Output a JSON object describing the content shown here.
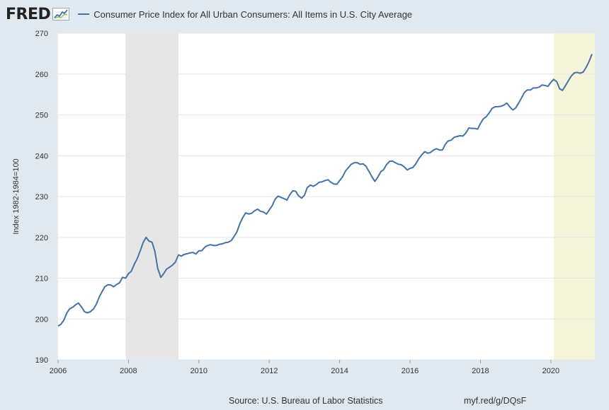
{
  "header": {
    "logo": "FRED",
    "logo_icon": "chart-graph-icon"
  },
  "chart_data": {
    "type": "line",
    "title": "Consumer Price Index for All Urban Consumers: All Items in U.S. City Average",
    "xlabel": "",
    "ylabel": "Index 1982-1984=100",
    "xlim": [
      2006,
      2021.25
    ],
    "ylim": [
      190,
      270
    ],
    "yticks": [
      190,
      200,
      210,
      220,
      230,
      240,
      250,
      260,
      270
    ],
    "xticks": [
      2006,
      2008,
      2010,
      2012,
      2014,
      2016,
      2018,
      2020
    ],
    "xtick_labels": [
      "2006",
      "2008",
      "2010",
      "2012",
      "2014",
      "2016",
      "2018",
      "2020"
    ],
    "grid": true,
    "series_color": "#4572a7",
    "recession_color": "#e6e6e6",
    "covid_shade_color": "#f5f5dc",
    "shaded_ranges": [
      {
        "start": 2007.92,
        "end": 2009.42,
        "color_key": "recession_color"
      },
      {
        "start": 2020.08,
        "end": 2021.25,
        "color_key": "covid_shade_color"
      }
    ],
    "series": [
      {
        "name": "Consumer Price Index for All Urban Consumers: All Items in U.S. City Average",
        "points": [
          [
            2006.0,
            198.3
          ],
          [
            2006.08,
            198.7
          ],
          [
            2006.17,
            199.8
          ],
          [
            2006.25,
            201.5
          ],
          [
            2006.33,
            202.5
          ],
          [
            2006.42,
            202.9
          ],
          [
            2006.5,
            203.5
          ],
          [
            2006.58,
            203.9
          ],
          [
            2006.67,
            202.9
          ],
          [
            2006.75,
            201.8
          ],
          [
            2006.83,
            201.5
          ],
          [
            2006.92,
            201.8
          ],
          [
            2007.0,
            202.4
          ],
          [
            2007.08,
            203.5
          ],
          [
            2007.17,
            205.4
          ],
          [
            2007.25,
            206.7
          ],
          [
            2007.33,
            207.9
          ],
          [
            2007.42,
            208.4
          ],
          [
            2007.5,
            208.3
          ],
          [
            2007.58,
            207.9
          ],
          [
            2007.67,
            208.5
          ],
          [
            2007.75,
            208.9
          ],
          [
            2007.83,
            210.2
          ],
          [
            2007.92,
            210.0
          ],
          [
            2008.0,
            211.1
          ],
          [
            2008.08,
            211.7
          ],
          [
            2008.17,
            213.5
          ],
          [
            2008.25,
            214.8
          ],
          [
            2008.33,
            216.6
          ],
          [
            2008.42,
            218.8
          ],
          [
            2008.5,
            220.0
          ],
          [
            2008.58,
            219.1
          ],
          [
            2008.67,
            218.8
          ],
          [
            2008.75,
            216.6
          ],
          [
            2008.83,
            212.4
          ],
          [
            2008.92,
            210.2
          ],
          [
            2009.0,
            211.1
          ],
          [
            2009.08,
            212.2
          ],
          [
            2009.17,
            212.7
          ],
          [
            2009.25,
            213.2
          ],
          [
            2009.33,
            213.9
          ],
          [
            2009.42,
            215.7
          ],
          [
            2009.5,
            215.4
          ],
          [
            2009.58,
            215.8
          ],
          [
            2009.67,
            216.0
          ],
          [
            2009.75,
            216.2
          ],
          [
            2009.83,
            216.3
          ],
          [
            2009.92,
            215.9
          ],
          [
            2010.0,
            216.7
          ],
          [
            2010.08,
            216.7
          ],
          [
            2010.17,
            217.6
          ],
          [
            2010.25,
            218.0
          ],
          [
            2010.33,
            218.2
          ],
          [
            2010.42,
            218.0
          ],
          [
            2010.5,
            218.0
          ],
          [
            2010.58,
            218.3
          ],
          [
            2010.67,
            218.4
          ],
          [
            2010.75,
            218.7
          ],
          [
            2010.83,
            218.8
          ],
          [
            2010.92,
            219.2
          ],
          [
            2011.0,
            220.2
          ],
          [
            2011.08,
            221.3
          ],
          [
            2011.17,
            223.5
          ],
          [
            2011.25,
            224.9
          ],
          [
            2011.33,
            226.0
          ],
          [
            2011.42,
            225.7
          ],
          [
            2011.5,
            225.9
          ],
          [
            2011.58,
            226.5
          ],
          [
            2011.67,
            226.9
          ],
          [
            2011.75,
            226.4
          ],
          [
            2011.83,
            226.2
          ],
          [
            2011.92,
            225.7
          ],
          [
            2012.0,
            226.7
          ],
          [
            2012.08,
            227.7
          ],
          [
            2012.17,
            229.4
          ],
          [
            2012.25,
            230.1
          ],
          [
            2012.33,
            229.8
          ],
          [
            2012.42,
            229.5
          ],
          [
            2012.5,
            229.1
          ],
          [
            2012.58,
            230.4
          ],
          [
            2012.67,
            231.4
          ],
          [
            2012.75,
            231.3
          ],
          [
            2012.83,
            230.2
          ],
          [
            2012.92,
            229.6
          ],
          [
            2013.0,
            230.3
          ],
          [
            2013.08,
            232.2
          ],
          [
            2013.17,
            232.8
          ],
          [
            2013.25,
            232.5
          ],
          [
            2013.33,
            232.9
          ],
          [
            2013.42,
            233.5
          ],
          [
            2013.5,
            233.6
          ],
          [
            2013.58,
            233.9
          ],
          [
            2013.67,
            234.1
          ],
          [
            2013.75,
            233.5
          ],
          [
            2013.83,
            233.1
          ],
          [
            2013.92,
            233.0
          ],
          [
            2014.0,
            233.9
          ],
          [
            2014.08,
            234.8
          ],
          [
            2014.17,
            236.3
          ],
          [
            2014.25,
            237.1
          ],
          [
            2014.33,
            237.9
          ],
          [
            2014.42,
            238.3
          ],
          [
            2014.5,
            238.3
          ],
          [
            2014.58,
            237.9
          ],
          [
            2014.67,
            238.0
          ],
          [
            2014.75,
            237.4
          ],
          [
            2014.83,
            236.2
          ],
          [
            2014.92,
            234.8
          ],
          [
            2015.0,
            233.7
          ],
          [
            2015.08,
            234.7
          ],
          [
            2015.17,
            236.1
          ],
          [
            2015.25,
            236.6
          ],
          [
            2015.33,
            237.8
          ],
          [
            2015.42,
            238.6
          ],
          [
            2015.5,
            238.7
          ],
          [
            2015.58,
            238.3
          ],
          [
            2015.67,
            237.9
          ],
          [
            2015.75,
            237.8
          ],
          [
            2015.83,
            237.3
          ],
          [
            2015.92,
            236.5
          ],
          [
            2016.0,
            236.9
          ],
          [
            2016.08,
            237.1
          ],
          [
            2016.17,
            238.1
          ],
          [
            2016.25,
            239.3
          ],
          [
            2016.33,
            240.2
          ],
          [
            2016.42,
            241.0
          ],
          [
            2016.5,
            240.6
          ],
          [
            2016.58,
            240.8
          ],
          [
            2016.67,
            241.4
          ],
          [
            2016.75,
            241.7
          ],
          [
            2016.83,
            241.4
          ],
          [
            2016.92,
            241.4
          ],
          [
            2017.0,
            242.8
          ],
          [
            2017.08,
            243.6
          ],
          [
            2017.17,
            243.8
          ],
          [
            2017.25,
            244.5
          ],
          [
            2017.33,
            244.7
          ],
          [
            2017.42,
            244.9
          ],
          [
            2017.5,
            244.8
          ],
          [
            2017.58,
            245.5
          ],
          [
            2017.67,
            246.8
          ],
          [
            2017.75,
            246.7
          ],
          [
            2017.83,
            246.7
          ],
          [
            2017.92,
            246.5
          ],
          [
            2018.0,
            247.9
          ],
          [
            2018.08,
            249.0
          ],
          [
            2018.17,
            249.6
          ],
          [
            2018.25,
            250.5
          ],
          [
            2018.33,
            251.6
          ],
          [
            2018.42,
            251.99
          ],
          [
            2018.5,
            252.0
          ],
          [
            2018.58,
            252.1
          ],
          [
            2018.67,
            252.4
          ],
          [
            2018.75,
            252.9
          ],
          [
            2018.83,
            252.0
          ],
          [
            2018.92,
            251.2
          ],
          [
            2019.0,
            251.7
          ],
          [
            2019.08,
            252.8
          ],
          [
            2019.17,
            254.2
          ],
          [
            2019.25,
            255.5
          ],
          [
            2019.33,
            256.1
          ],
          [
            2019.42,
            256.1
          ],
          [
            2019.5,
            256.6
          ],
          [
            2019.58,
            256.6
          ],
          [
            2019.67,
            256.8
          ],
          [
            2019.75,
            257.3
          ],
          [
            2019.83,
            257.2
          ],
          [
            2019.92,
            257.0
          ],
          [
            2020.0,
            257.97
          ],
          [
            2020.08,
            258.7
          ],
          [
            2020.17,
            258.1
          ],
          [
            2020.25,
            256.4
          ],
          [
            2020.33,
            256.0
          ],
          [
            2020.42,
            257.2
          ],
          [
            2020.5,
            258.4
          ],
          [
            2020.58,
            259.5
          ],
          [
            2020.67,
            260.3
          ],
          [
            2020.75,
            260.4
          ],
          [
            2020.83,
            260.2
          ],
          [
            2020.92,
            260.5
          ],
          [
            2021.0,
            261.6
          ],
          [
            2021.08,
            263.0
          ],
          [
            2021.17,
            264.9
          ]
        ]
      }
    ]
  },
  "footer": {
    "source": "Source: U.S. Bureau of Labor Statistics",
    "url": "myf.red/g/DQsF"
  }
}
